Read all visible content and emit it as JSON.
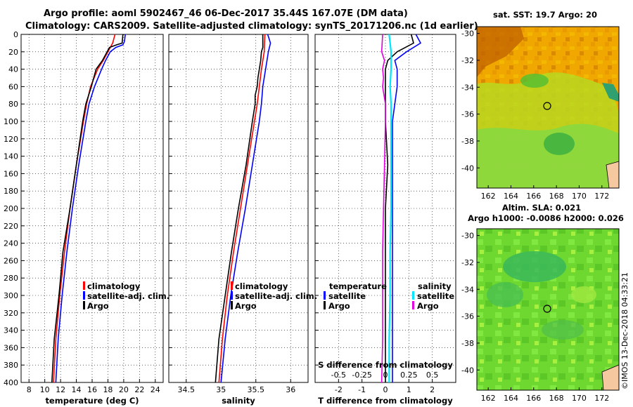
{
  "title_line1": "Argo profile: aoml 5902467_46 06-Dec-2017 35.44S 167.07E (DM data)",
  "title_line2": "Climatology: CARS2009. Satellite-adjusted climatology: synTS_20171206.nc (1d earlier)",
  "depth_ticks": [
    "0",
    "20",
    "40",
    "60",
    "80",
    "100",
    "120",
    "140",
    "160",
    "180",
    "200",
    "220",
    "240",
    "260",
    "280",
    "300",
    "320",
    "340",
    "360",
    "380",
    "400"
  ],
  "colors": {
    "climatology": "#ff0000",
    "satellite": "#0000ff",
    "argo": "#000000",
    "salinity_sat": "#00e5ff",
    "salinity_argo": "#e000e0",
    "land": "#f5c8a0"
  },
  "chart_data": [
    {
      "type": "line",
      "xlabel": "temperature (deg C)",
      "xlim": [
        7,
        25
      ],
      "ylim": [
        400,
        0
      ],
      "x_ticks": [
        "8",
        "10",
        "12",
        "14",
        "16",
        "18",
        "20",
        "22",
        "24"
      ],
      "legend": [
        "climatology",
        "satellite-adj. clim.",
        "Argo"
      ],
      "series": [
        {
          "name": "climatology",
          "depth": [
            0,
            10,
            20,
            30,
            40,
            60,
            80,
            100,
            150,
            200,
            250,
            300,
            350,
            400
          ],
          "values": [
            18.9,
            18.6,
            18.0,
            17.4,
            16.7,
            15.8,
            15.3,
            14.9,
            14.0,
            13.2,
            12.5,
            11.9,
            11.4,
            11.1
          ]
        },
        {
          "name": "satellite-adj. clim.",
          "depth": [
            0,
            8,
            12,
            15,
            20,
            30,
            40,
            60,
            80,
            100,
            150,
            200,
            250,
            300,
            350,
            400
          ],
          "values": [
            20.2,
            20.1,
            19.9,
            19.0,
            18.3,
            17.7,
            17.2,
            16.3,
            15.6,
            15.2,
            14.3,
            13.5,
            12.8,
            12.2,
            11.7,
            11.4
          ]
        },
        {
          "name": "Argo",
          "depth": [
            0,
            10,
            12,
            15,
            20,
            30,
            40,
            60,
            80,
            100,
            150,
            200,
            250,
            300,
            350,
            400
          ],
          "values": [
            19.9,
            19.8,
            19.1,
            18.2,
            17.9,
            17.3,
            16.5,
            15.9,
            15.2,
            14.8,
            14.0,
            13.2,
            12.3,
            11.8,
            11.2,
            10.9
          ]
        }
      ]
    },
    {
      "type": "line",
      "xlabel": "salinity",
      "xlim": [
        34.25,
        36.25
      ],
      "ylim": [
        400,
        0
      ],
      "x_ticks": [
        "34.5",
        "35",
        "35.5",
        "36"
      ],
      "legend": [
        "climatology",
        "satellite-adj. clim.",
        "Argo"
      ],
      "series": [
        {
          "name": "climatology",
          "depth": [
            0,
            20,
            40,
            60,
            80,
            100,
            150,
            200,
            250,
            300,
            350,
            400
          ],
          "values": [
            35.63,
            35.62,
            35.58,
            35.55,
            35.52,
            35.48,
            35.38,
            35.28,
            35.18,
            35.09,
            35.02,
            34.97
          ]
        },
        {
          "name": "satellite-adj. clim.",
          "depth": [
            0,
            10,
            20,
            30,
            40,
            60,
            80,
            100,
            150,
            200,
            250,
            300,
            350,
            400
          ],
          "values": [
            35.67,
            35.71,
            35.68,
            35.66,
            35.64,
            35.6,
            35.58,
            35.55,
            35.45,
            35.35,
            35.24,
            35.14,
            35.06,
            35.0
          ]
        },
        {
          "name": "Argo",
          "depth": [
            0,
            15,
            20,
            30,
            40,
            50,
            60,
            70,
            80,
            90,
            100,
            150,
            200,
            250,
            300,
            350,
            400
          ],
          "values": [
            35.6,
            35.6,
            35.58,
            35.57,
            35.55,
            35.53,
            35.52,
            35.49,
            35.49,
            35.47,
            35.45,
            35.36,
            35.25,
            35.15,
            35.06,
            34.97,
            34.92
          ]
        }
      ]
    },
    {
      "type": "line",
      "xlabel": "T difference from climatology",
      "x_ticks": [
        "-2",
        "-1",
        "0",
        "1",
        "2"
      ],
      "xlim": [
        -3,
        3
      ],
      "secondary_xlabel": "S difference from climatology",
      "secondary_ticks": [
        "-0.5",
        "-0.25",
        "0",
        "0.25",
        "0.5"
      ],
      "secondary_xlim": [
        -0.75,
        0.75
      ],
      "ylim": [
        400,
        0
      ],
      "legend_temperature_title": "temperature",
      "legend_salinity_title": "salinity",
      "legend_temperature": [
        "satellite",
        "Argo"
      ],
      "legend_salinity": [
        "satellite",
        "Argo"
      ],
      "series": [
        {
          "name": "temperature satellite",
          "depth": [
            0,
            10,
            20,
            30,
            40,
            60,
            80,
            100,
            150,
            200,
            250,
            300,
            350,
            400
          ],
          "values": [
            1.3,
            1.5,
            0.9,
            0.4,
            0.5,
            0.5,
            0.4,
            0.3,
            0.3,
            0.3,
            0.3,
            0.3,
            0.3,
            0.3
          ]
        },
        {
          "name": "temperature Argo",
          "depth": [
            0,
            10,
            20,
            30,
            40,
            60,
            80,
            100,
            150,
            200,
            250,
            300,
            350,
            400
          ],
          "values": [
            1.1,
            1.2,
            0.5,
            0.1,
            0.0,
            0.0,
            0.0,
            0.0,
            0.1,
            0.0,
            0.0,
            0.0,
            0.0,
            0.0
          ]
        },
        {
          "name": "salinity satellite",
          "depth": [
            0,
            20,
            40,
            60,
            80,
            100,
            150,
            200,
            250,
            300,
            350,
            400
          ],
          "values": [
            0.04,
            0.06,
            0.06,
            0.05,
            0.06,
            0.06,
            0.06,
            0.06,
            0.05,
            0.05,
            0.04,
            0.04
          ]
        },
        {
          "name": "salinity Argo",
          "depth": [
            0,
            20,
            30,
            40,
            50,
            60,
            80,
            100,
            150,
            200,
            250,
            300,
            350,
            400
          ],
          "values": [
            -0.03,
            -0.04,
            -0.01,
            -0.03,
            -0.02,
            -0.03,
            0.0,
            0.0,
            -0.01,
            -0.02,
            -0.03,
            -0.03,
            -0.03,
            -0.04
          ]
        }
      ]
    },
    {
      "type": "heatmap",
      "title": "sat. SST: 19.7 Argo: 20",
      "x_ticks": [
        "162",
        "164",
        "166",
        "168",
        "170",
        "172"
      ],
      "y_ticks": [
        "-30",
        "-32",
        "-34",
        "-36",
        "-38",
        "-40"
      ],
      "xlim": [
        161,
        173.5
      ],
      "ylim": [
        -41.5,
        -29.5
      ],
      "marker": [
        167.07,
        -35.44
      ]
    },
    {
      "type": "heatmap",
      "title": "Altim. SLA: 0.021",
      "subtitle": "Argo h1000: -0.0086 h2000: 0.026",
      "x_ticks": [
        "162",
        "164",
        "166",
        "168",
        "170",
        "172"
      ],
      "y_ticks": [
        "-30",
        "-32",
        "-34",
        "-36",
        "-38",
        "-40"
      ],
      "xlim": [
        161,
        173.5
      ],
      "ylim": [
        -41.5,
        -29.5
      ],
      "marker": [
        167.07,
        -35.44
      ]
    }
  ],
  "side_note": "©IMOS 13-Dec-2018 04:33:21"
}
